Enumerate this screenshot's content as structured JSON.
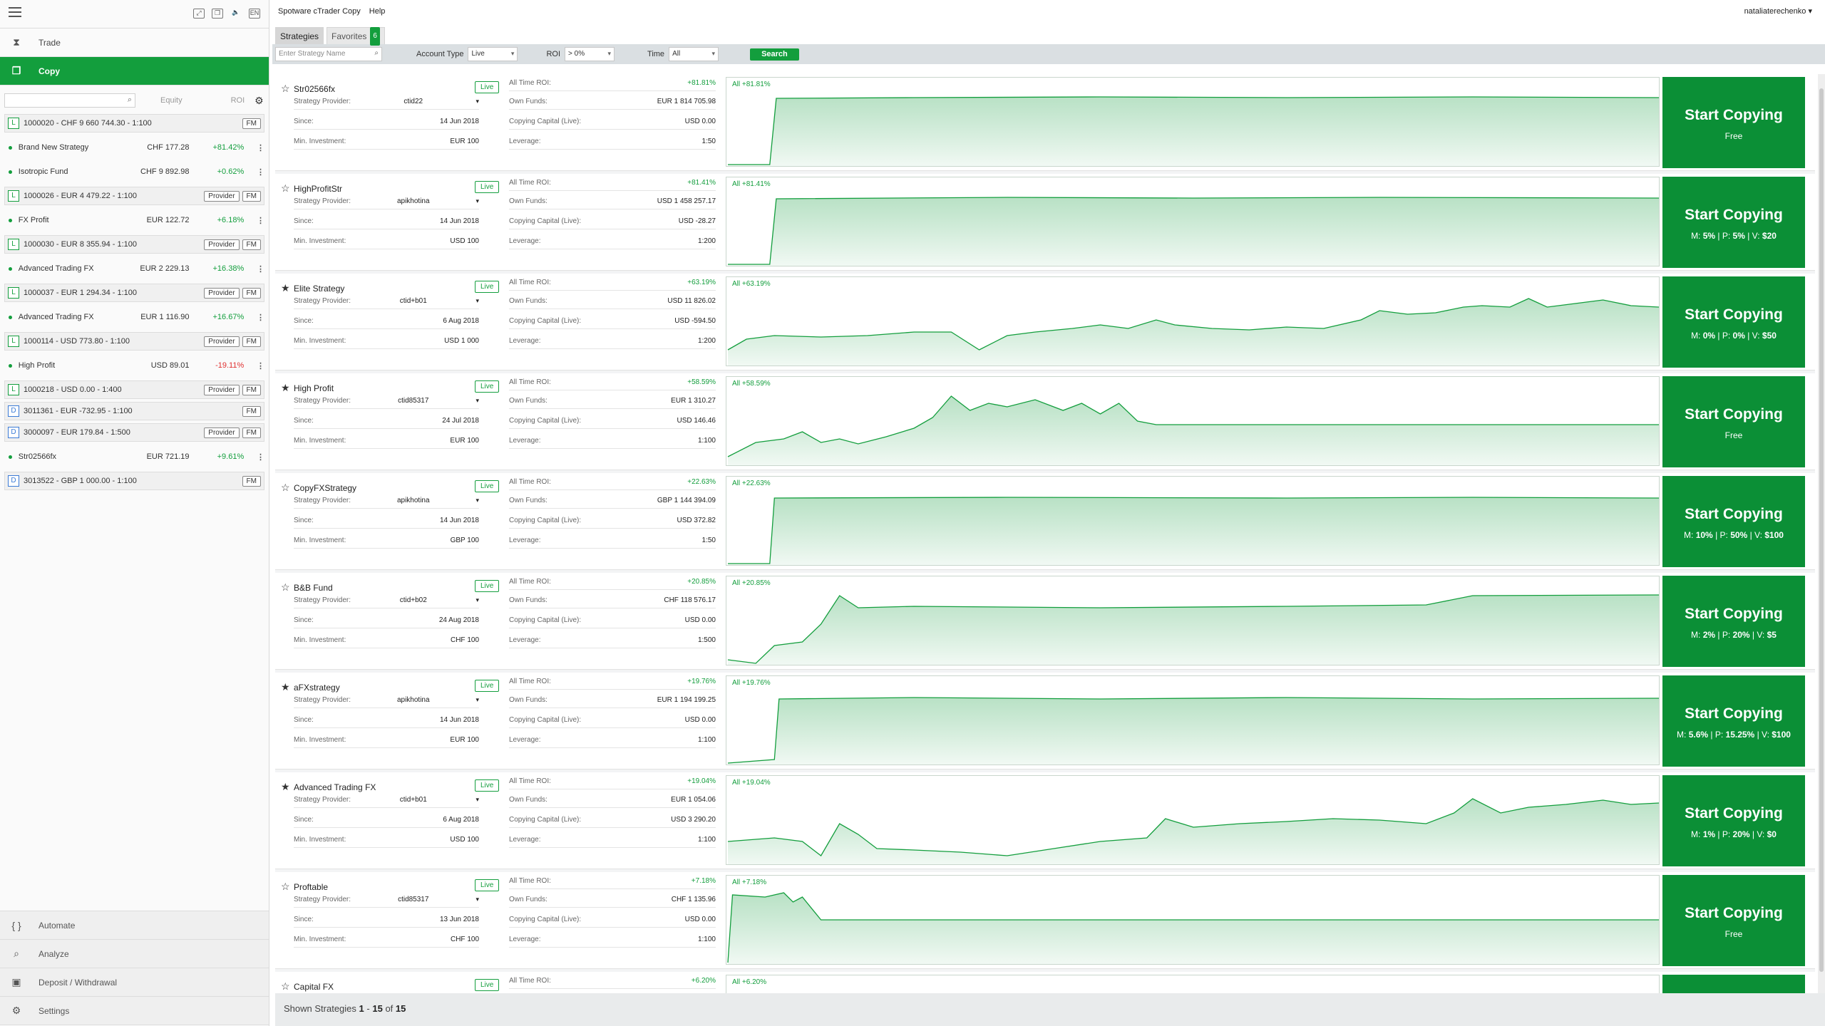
{
  "sidebar": {
    "nav": [
      {
        "label": "Trade",
        "icon": "trade-icon"
      },
      {
        "label": "Copy",
        "icon": "copy-icon"
      }
    ],
    "bottom": [
      {
        "label": "Automate",
        "icon": "code-braces-icon"
      },
      {
        "label": "Analyze",
        "icon": "analyze-icon"
      },
      {
        "label": "Deposit / Withdrawal",
        "icon": "wallet-icon"
      },
      {
        "label": "Settings",
        "icon": "gear-icon"
      }
    ],
    "equity_header": "Equity",
    "roi_header": "ROI",
    "rows": [
      {
        "type": "account",
        "badge": "L",
        "label": "1000020 - CHF 9 660 744.30 - 1:100",
        "provider": false,
        "fm": "FM"
      },
      {
        "type": "strategy",
        "name": "Brand New Strategy",
        "equity": "CHF 177.28",
        "roi": "+81.42%",
        "neg": false
      },
      {
        "type": "strategy",
        "name": "Isotropic Fund",
        "equity": "CHF 9 892.98",
        "roi": "+0.62%",
        "neg": false
      },
      {
        "type": "account",
        "badge": "L",
        "label": "1000026 - EUR 4 479.22 - 1:100",
        "provider": "Provider",
        "fm": "FM"
      },
      {
        "type": "strategy",
        "name": "FX Profit",
        "equity": "EUR 122.72",
        "roi": "+6.18%",
        "neg": false
      },
      {
        "type": "account",
        "badge": "L",
        "label": "1000030 - EUR 8 355.94 - 1:100",
        "provider": "Provider",
        "fm": "FM"
      },
      {
        "type": "strategy",
        "name": "Advanced Trading FX",
        "equity": "EUR 2 229.13",
        "roi": "+16.38%",
        "neg": false
      },
      {
        "type": "account",
        "badge": "L",
        "label": "1000037 - EUR 1 294.34 - 1:100",
        "provider": "Provider",
        "fm": "FM"
      },
      {
        "type": "strategy",
        "name": "Advanced Trading FX",
        "equity": "EUR 1 116.90",
        "roi": "+16.67%",
        "neg": false
      },
      {
        "type": "account",
        "badge": "L",
        "label": "1000114 - USD 773.80 - 1:100",
        "provider": "Provider",
        "fm": "FM"
      },
      {
        "type": "strategy",
        "name": "High Profit",
        "equity": "USD 89.01",
        "roi": "-19.11%",
        "neg": true
      },
      {
        "type": "account",
        "badge": "L",
        "label": "1000218 - USD 0.00 - 1:400",
        "provider": "Provider",
        "fm": "FM"
      },
      {
        "type": "account",
        "badge": "D",
        "label": "3011361 - EUR -732.95 - 1:100",
        "provider": false,
        "fm": "FM"
      },
      {
        "type": "account",
        "badge": "D",
        "label": "3000097 - EUR 179.84 - 1:500",
        "provider": "Provider",
        "fm": "FM"
      },
      {
        "type": "strategy",
        "name": "Str02566fx",
        "equity": "EUR 721.19",
        "roi": "+9.61%",
        "neg": false
      },
      {
        "type": "account",
        "badge": "D",
        "label": "3013522 - GBP 1 000.00 - 1:100",
        "provider": false,
        "fm": "FM"
      }
    ]
  },
  "menubar": {
    "app": "Spotware cTrader Copy",
    "help": "Help",
    "user": "nataliaterechenko"
  },
  "tabs": {
    "strategies": "Strategies",
    "favorites": "Favorites",
    "favorites_count": "6"
  },
  "filters": {
    "search_placeholder": "Enter Strategy Name",
    "account_type_label": "Account Type",
    "account_type": "Live",
    "roi_label": "ROI",
    "roi": "> 0%",
    "time_label": "Time",
    "time": "All",
    "search_button": "Search"
  },
  "labels": {
    "provider": "Strategy Provider:",
    "since": "Since:",
    "min": "Min. Investment:",
    "roi": "All Time ROI:",
    "own": "Own Funds:",
    "capital": "Copying Capital (Live):",
    "lev": "Leverage:",
    "start": "Start Copying",
    "free": "Free",
    "live": "Live"
  },
  "strategies": [
    {
      "name": "Str02566fx",
      "fav": false,
      "provider": "ctid22",
      "since": "14 Jun 2018",
      "min": "EUR 100",
      "roi": "+81.81%",
      "own": "EUR 1 814 705.98",
      "capital": "USD 0.00",
      "lev": "1:50",
      "fee": null,
      "chart_label": "All +81.81%",
      "curve": [
        [
          0,
          0
        ],
        [
          0.045,
          0
        ],
        [
          0.052,
          0.93
        ],
        [
          0.2,
          0.94
        ],
        [
          0.4,
          0.95
        ],
        [
          0.6,
          0.94
        ],
        [
          0.8,
          0.95
        ],
        [
          1,
          0.94
        ]
      ]
    },
    {
      "name": "HighProfitStr",
      "fav": false,
      "provider": "apikhotina",
      "since": "14 Jun 2018",
      "min": "USD 100",
      "roi": "+81.41%",
      "own": "USD 1 458 257.17",
      "capital": "USD -28.27",
      "lev": "1:200",
      "fee": {
        "m": "5%",
        "p": "5%",
        "v": "$20"
      },
      "chart_label": "All +81.41%",
      "curve": [
        [
          0,
          0
        ],
        [
          0.045,
          0
        ],
        [
          0.052,
          0.92
        ],
        [
          0.3,
          0.94
        ],
        [
          0.5,
          0.93
        ],
        [
          0.7,
          0.94
        ],
        [
          1,
          0.93
        ]
      ]
    },
    {
      "name": "Elite Strategy",
      "fav": true,
      "provider": "ctid+b01",
      "since": "6 Aug 2018",
      "min": "USD 1 000",
      "roi": "+63.19%",
      "own": "USD 11 826.02",
      "capital": "USD -594.50",
      "lev": "1:200",
      "fee": {
        "m": "0%",
        "p": "0%",
        "v": "$50"
      },
      "chart_label": "All +63.19%",
      "curve": [
        [
          0,
          0.2
        ],
        [
          0.02,
          0.35
        ],
        [
          0.05,
          0.4
        ],
        [
          0.1,
          0.38
        ],
        [
          0.15,
          0.4
        ],
        [
          0.2,
          0.45
        ],
        [
          0.24,
          0.45
        ],
        [
          0.27,
          0.2
        ],
        [
          0.3,
          0.4
        ],
        [
          0.33,
          0.45
        ],
        [
          0.37,
          0.5
        ],
        [
          0.4,
          0.55
        ],
        [
          0.43,
          0.5
        ],
        [
          0.46,
          0.62
        ],
        [
          0.48,
          0.55
        ],
        [
          0.52,
          0.5
        ],
        [
          0.56,
          0.48
        ],
        [
          0.6,
          0.52
        ],
        [
          0.64,
          0.5
        ],
        [
          0.68,
          0.62
        ],
        [
          0.7,
          0.75
        ],
        [
          0.73,
          0.7
        ],
        [
          0.76,
          0.72
        ],
        [
          0.79,
          0.8
        ],
        [
          0.81,
          0.82
        ],
        [
          0.84,
          0.8
        ],
        [
          0.86,
          0.92
        ],
        [
          0.88,
          0.8
        ],
        [
          0.91,
          0.85
        ],
        [
          0.94,
          0.9
        ],
        [
          0.97,
          0.82
        ],
        [
          1,
          0.8
        ]
      ]
    },
    {
      "name": "High Profit",
      "fav": true,
      "provider": "ctid85317",
      "since": "24 Jul 2018",
      "min": "EUR 100",
      "roi": "+58.59%",
      "own": "EUR 1 310.27",
      "capital": "USD 146.46",
      "lev": "1:100",
      "fee": null,
      "chart_label": "All +58.59%",
      "curve": [
        [
          0,
          0.1
        ],
        [
          0.03,
          0.3
        ],
        [
          0.06,
          0.35
        ],
        [
          0.08,
          0.45
        ],
        [
          0.1,
          0.3
        ],
        [
          0.12,
          0.35
        ],
        [
          0.14,
          0.28
        ],
        [
          0.17,
          0.38
        ],
        [
          0.2,
          0.5
        ],
        [
          0.22,
          0.65
        ],
        [
          0.24,
          0.95
        ],
        [
          0.26,
          0.75
        ],
        [
          0.28,
          0.85
        ],
        [
          0.3,
          0.8
        ],
        [
          0.33,
          0.9
        ],
        [
          0.36,
          0.75
        ],
        [
          0.38,
          0.85
        ],
        [
          0.4,
          0.7
        ],
        [
          0.42,
          0.85
        ],
        [
          0.44,
          0.6
        ],
        [
          0.46,
          0.55
        ],
        [
          0.5,
          0.55
        ],
        [
          0.6,
          0.55
        ],
        [
          0.8,
          0.55
        ],
        [
          1,
          0.55
        ]
      ]
    },
    {
      "name": "CopyFXStrategy",
      "fav": false,
      "provider": "apikhotina",
      "since": "14 Jun 2018",
      "min": "GBP 100",
      "roi": "+22.63%",
      "own": "GBP 1 144 394.09",
      "capital": "USD 372.82",
      "lev": "1:50",
      "fee": {
        "m": "10%",
        "p": "50%",
        "v": "$100"
      },
      "chart_label": "All +22.63%",
      "curve": [
        [
          0,
          0
        ],
        [
          0.045,
          0
        ],
        [
          0.05,
          0.92
        ],
        [
          0.3,
          0.93
        ],
        [
          0.6,
          0.92
        ],
        [
          0.8,
          0.93
        ],
        [
          1,
          0.92
        ]
      ]
    },
    {
      "name": "B&B Fund",
      "fav": false,
      "provider": "ctid+b02",
      "since": "24 Aug 2018",
      "min": "CHF 100",
      "roi": "+20.85%",
      "own": "CHF 118 576.17",
      "capital": "USD 0.00",
      "lev": "1:500",
      "fee": {
        "m": "2%",
        "p": "20%",
        "v": "$5"
      },
      "chart_label": "All +20.85%",
      "curve": [
        [
          0,
          0.05
        ],
        [
          0.03,
          0.0
        ],
        [
          0.05,
          0.25
        ],
        [
          0.08,
          0.3
        ],
        [
          0.1,
          0.55
        ],
        [
          0.12,
          0.95
        ],
        [
          0.14,
          0.78
        ],
        [
          0.2,
          0.8
        ],
        [
          0.4,
          0.78
        ],
        [
          0.6,
          0.8
        ],
        [
          0.75,
          0.82
        ],
        [
          0.8,
          0.95
        ],
        [
          1,
          0.96
        ]
      ]
    },
    {
      "name": "aFXstrategy",
      "fav": true,
      "provider": "apikhotina",
      "since": "14 Jun 2018",
      "min": "EUR 100",
      "roi": "+19.76%",
      "own": "EUR 1 194 199.25",
      "capital": "USD 0.00",
      "lev": "1:100",
      "fee": {
        "m": "5.6%",
        "p": "15.25%",
        "v": "$100"
      },
      "chart_label": "All +19.76%",
      "curve": [
        [
          0,
          0
        ],
        [
          0.05,
          0.05
        ],
        [
          0.055,
          0.9
        ],
        [
          0.2,
          0.92
        ],
        [
          0.4,
          0.9
        ],
        [
          0.6,
          0.92
        ],
        [
          0.8,
          0.9
        ],
        [
          1,
          0.91
        ]
      ]
    },
    {
      "name": "Advanced Trading FX",
      "fav": true,
      "provider": "ctid+b01",
      "since": "6 Aug 2018",
      "min": "USD 100",
      "roi": "+19.04%",
      "own": "EUR 1 054.06",
      "capital": "USD 3 290.20",
      "lev": "1:100",
      "fee": {
        "m": "1%",
        "p": "20%",
        "v": "$0"
      },
      "chart_label": "All +19.04%",
      "curve": [
        [
          0,
          0.3
        ],
        [
          0.05,
          0.35
        ],
        [
          0.08,
          0.3
        ],
        [
          0.1,
          0.1
        ],
        [
          0.12,
          0.55
        ],
        [
          0.14,
          0.4
        ],
        [
          0.16,
          0.2
        ],
        [
          0.2,
          0.18
        ],
        [
          0.25,
          0.15
        ],
        [
          0.3,
          0.1
        ],
        [
          0.35,
          0.2
        ],
        [
          0.4,
          0.3
        ],
        [
          0.45,
          0.35
        ],
        [
          0.47,
          0.62
        ],
        [
          0.5,
          0.5
        ],
        [
          0.55,
          0.55
        ],
        [
          0.6,
          0.58
        ],
        [
          0.65,
          0.62
        ],
        [
          0.7,
          0.6
        ],
        [
          0.75,
          0.55
        ],
        [
          0.78,
          0.7
        ],
        [
          0.8,
          0.9
        ],
        [
          0.83,
          0.7
        ],
        [
          0.86,
          0.78
        ],
        [
          0.9,
          0.82
        ],
        [
          0.94,
          0.88
        ],
        [
          0.97,
          0.82
        ],
        [
          1,
          0.84
        ]
      ]
    },
    {
      "name": "Proftable",
      "fav": false,
      "provider": "ctid85317",
      "since": "13 Jun 2018",
      "min": "CHF 100",
      "roi": "+7.18%",
      "own": "CHF 1 135.96",
      "capital": "USD 0.00",
      "lev": "1:100",
      "fee": null,
      "chart_label": "All +7.18%",
      "curve": [
        [
          0,
          0
        ],
        [
          0.005,
          0.95
        ],
        [
          0.04,
          0.92
        ],
        [
          0.06,
          0.98
        ],
        [
          0.07,
          0.85
        ],
        [
          0.08,
          0.92
        ],
        [
          0.1,
          0.6
        ],
        [
          0.2,
          0.6
        ],
        [
          0.4,
          0.6
        ],
        [
          0.6,
          0.6
        ],
        [
          0.8,
          0.6
        ],
        [
          1,
          0.6
        ]
      ]
    },
    {
      "name": "Capital FX",
      "fav": false,
      "provider": "",
      "since": "",
      "min": "",
      "roi": "+6.20%",
      "own": "",
      "capital": "",
      "lev": "",
      "fee": null,
      "chart_label": "All +6.20%",
      "curve": [
        [
          0,
          0.6
        ],
        [
          0.2,
          0.6
        ],
        [
          0.23,
          0.95
        ],
        [
          0.25,
          0.6
        ],
        [
          0.3,
          0.62
        ],
        [
          0.5,
          0.6
        ],
        [
          0.76,
          0.6
        ],
        [
          0.77,
          0.85
        ],
        [
          0.78,
          0.6
        ],
        [
          0.88,
          0.6
        ],
        [
          0.89,
          0.9
        ],
        [
          0.9,
          0.6
        ],
        [
          1,
          0.62
        ]
      ]
    }
  ],
  "footer": {
    "prefix": "Shown Strategies",
    "from": "1",
    "dash": "-",
    "to": "15",
    "of": "of",
    "total": "15"
  }
}
